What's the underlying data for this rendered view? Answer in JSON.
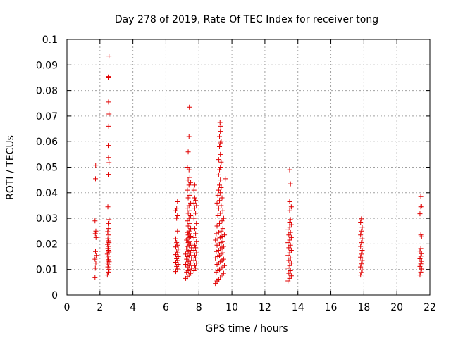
{
  "chart_data": {
    "type": "scatter",
    "title": "Day 278 of 2019, Rate Of TEC Index for receiver tong",
    "xlabel": "GPS time / hours",
    "ylabel": "ROTI / TECUs",
    "xlim": [
      0,
      22
    ],
    "ylim": [
      0,
      0.1
    ],
    "xticks": [
      0,
      2,
      4,
      6,
      8,
      10,
      12,
      14,
      16,
      18,
      20,
      22
    ],
    "yticks": [
      0,
      0.01,
      0.02,
      0.03,
      0.04,
      0.05,
      0.06,
      0.07,
      0.08,
      0.09,
      0.1
    ],
    "xtick_labels": [
      "0",
      "2",
      "4",
      "6",
      "8",
      "10",
      "12",
      "14",
      "16",
      "18",
      "20",
      "22"
    ],
    "ytick_labels": [
      "0",
      "0.01",
      "0.02",
      "0.03",
      "0.04",
      "0.05",
      "0.06",
      "0.07",
      "0.08",
      "0.09",
      "0.1"
    ],
    "grid": true,
    "marker": "+",
    "color": "#e00000",
    "series": [
      {
        "name": "ROTI",
        "points": [
          [
            1.7,
            0.0068
          ],
          [
            1.72,
            0.0105
          ],
          [
            1.75,
            0.0125
          ],
          [
            1.7,
            0.014
          ],
          [
            1.78,
            0.0155
          ],
          [
            1.73,
            0.017
          ],
          [
            1.76,
            0.0225
          ],
          [
            1.72,
            0.024
          ],
          [
            1.75,
            0.025
          ],
          [
            1.7,
            0.029
          ],
          [
            1.73,
            0.0455
          ],
          [
            1.74,
            0.0508
          ],
          [
            2.45,
            0.0078
          ],
          [
            2.5,
            0.009
          ],
          [
            2.55,
            0.01
          ],
          [
            2.48,
            0.011
          ],
          [
            2.52,
            0.0118
          ],
          [
            2.45,
            0.0125
          ],
          [
            2.56,
            0.013
          ],
          [
            2.5,
            0.0138
          ],
          [
            2.47,
            0.0145
          ],
          [
            2.53,
            0.0152
          ],
          [
            2.45,
            0.016
          ],
          [
            2.55,
            0.0168
          ],
          [
            2.5,
            0.0175
          ],
          [
            2.48,
            0.0182
          ],
          [
            2.52,
            0.019
          ],
          [
            2.46,
            0.0198
          ],
          [
            2.55,
            0.0205
          ],
          [
            2.5,
            0.0212
          ],
          [
            2.48,
            0.022
          ],
          [
            2.53,
            0.0235
          ],
          [
            2.47,
            0.0248
          ],
          [
            2.52,
            0.026
          ],
          [
            2.5,
            0.028
          ],
          [
            2.55,
            0.0295
          ],
          [
            2.48,
            0.0345
          ],
          [
            2.5,
            0.0472
          ],
          [
            2.55,
            0.0518
          ],
          [
            2.52,
            0.0538
          ],
          [
            2.5,
            0.0585
          ],
          [
            2.53,
            0.066
          ],
          [
            2.55,
            0.0708
          ],
          [
            2.52,
            0.0755
          ],
          [
            2.5,
            0.085
          ],
          [
            2.53,
            0.0855
          ],
          [
            2.55,
            0.0935
          ],
          [
            6.6,
            0.0092
          ],
          [
            6.7,
            0.0102
          ],
          [
            6.65,
            0.0112
          ],
          [
            6.75,
            0.012
          ],
          [
            6.6,
            0.0128
          ],
          [
            6.7,
            0.0135
          ],
          [
            6.65,
            0.0142
          ],
          [
            6.75,
            0.015
          ],
          [
            6.6,
            0.0158
          ],
          [
            6.7,
            0.0165
          ],
          [
            6.65,
            0.0172
          ],
          [
            6.75,
            0.018
          ],
          [
            6.6,
            0.0188
          ],
          [
            6.7,
            0.0195
          ],
          [
            6.65,
            0.0205
          ],
          [
            6.6,
            0.022
          ],
          [
            6.7,
            0.025
          ],
          [
            6.65,
            0.03
          ],
          [
            6.7,
            0.031
          ],
          [
            6.6,
            0.033
          ],
          [
            6.65,
            0.034
          ],
          [
            6.7,
            0.0365
          ],
          [
            7.2,
            0.0065
          ],
          [
            7.3,
            0.0072
          ],
          [
            7.4,
            0.0078
          ],
          [
            7.5,
            0.0085
          ],
          [
            7.25,
            0.009
          ],
          [
            7.35,
            0.0095
          ],
          [
            7.45,
            0.01
          ],
          [
            7.55,
            0.0105
          ],
          [
            7.3,
            0.011
          ],
          [
            7.4,
            0.0115
          ],
          [
            7.2,
            0.012
          ],
          [
            7.5,
            0.0125
          ],
          [
            7.35,
            0.013
          ],
          [
            7.45,
            0.0135
          ],
          [
            7.25,
            0.014
          ],
          [
            7.55,
            0.0145
          ],
          [
            7.3,
            0.015
          ],
          [
            7.4,
            0.0155
          ],
          [
            7.2,
            0.016
          ],
          [
            7.5,
            0.0165
          ],
          [
            7.35,
            0.017
          ],
          [
            7.45,
            0.0175
          ],
          [
            7.25,
            0.018
          ],
          [
            7.55,
            0.0185
          ],
          [
            7.3,
            0.019
          ],
          [
            7.4,
            0.0195
          ],
          [
            7.5,
            0.02
          ],
          [
            7.35,
            0.0205
          ],
          [
            7.45,
            0.021
          ],
          [
            7.25,
            0.0215
          ],
          [
            7.3,
            0.022
          ],
          [
            7.4,
            0.0225
          ],
          [
            7.5,
            0.023
          ],
          [
            7.35,
            0.0235
          ],
          [
            7.45,
            0.024
          ],
          [
            7.3,
            0.0245
          ],
          [
            7.4,
            0.025
          ],
          [
            7.5,
            0.026
          ],
          [
            7.35,
            0.027
          ],
          [
            7.45,
            0.028
          ],
          [
            7.3,
            0.029
          ],
          [
            7.4,
            0.03
          ],
          [
            7.5,
            0.031
          ],
          [
            7.35,
            0.032
          ],
          [
            7.45,
            0.033
          ],
          [
            7.3,
            0.034
          ],
          [
            7.4,
            0.035
          ],
          [
            7.5,
            0.036
          ],
          [
            7.35,
            0.038
          ],
          [
            7.45,
            0.039
          ],
          [
            7.3,
            0.041
          ],
          [
            7.4,
            0.043
          ],
          [
            7.5,
            0.044
          ],
          [
            7.35,
            0.045
          ],
          [
            7.45,
            0.046
          ],
          [
            7.4,
            0.049
          ],
          [
            7.3,
            0.05
          ],
          [
            7.35,
            0.056
          ],
          [
            7.4,
            0.062
          ],
          [
            7.42,
            0.0735
          ],
          [
            7.7,
            0.0095
          ],
          [
            7.8,
            0.0105
          ],
          [
            7.75,
            0.0115
          ],
          [
            7.85,
            0.0125
          ],
          [
            7.7,
            0.0135
          ],
          [
            7.8,
            0.0145
          ],
          [
            7.75,
            0.0155
          ],
          [
            7.85,
            0.0165
          ],
          [
            7.7,
            0.0175
          ],
          [
            7.8,
            0.0185
          ],
          [
            7.75,
            0.0195
          ],
          [
            7.85,
            0.021
          ],
          [
            7.7,
            0.0225
          ],
          [
            7.8,
            0.024
          ],
          [
            7.75,
            0.026
          ],
          [
            7.85,
            0.028
          ],
          [
            7.7,
            0.03
          ],
          [
            7.8,
            0.032
          ],
          [
            7.75,
            0.034
          ],
          [
            7.85,
            0.035
          ],
          [
            7.7,
            0.036
          ],
          [
            7.8,
            0.037
          ],
          [
            7.75,
            0.038
          ],
          [
            7.7,
            0.041
          ],
          [
            7.75,
            0.043
          ],
          [
            9.0,
            0.0045
          ],
          [
            9.1,
            0.0055
          ],
          [
            9.2,
            0.0062
          ],
          [
            9.3,
            0.007
          ],
          [
            9.4,
            0.0078
          ],
          [
            9.5,
            0.0085
          ],
          [
            9.05,
            0.009
          ],
          [
            9.15,
            0.0095
          ],
          [
            9.25,
            0.01
          ],
          [
            9.35,
            0.0105
          ],
          [
            9.45,
            0.011
          ],
          [
            9.55,
            0.0115
          ],
          [
            9.1,
            0.012
          ],
          [
            9.2,
            0.0125
          ],
          [
            9.3,
            0.013
          ],
          [
            9.4,
            0.0135
          ],
          [
            9.5,
            0.014
          ],
          [
            9.0,
            0.0145
          ],
          [
            9.15,
            0.015
          ],
          [
            9.25,
            0.0155
          ],
          [
            9.35,
            0.016
          ],
          [
            9.45,
            0.0165
          ],
          [
            9.05,
            0.017
          ],
          [
            9.2,
            0.0175
          ],
          [
            9.3,
            0.018
          ],
          [
            9.4,
            0.0185
          ],
          [
            9.5,
            0.019
          ],
          [
            9.1,
            0.0195
          ],
          [
            9.25,
            0.02
          ],
          [
            9.35,
            0.0205
          ],
          [
            9.45,
            0.021
          ],
          [
            9.0,
            0.0215
          ],
          [
            9.15,
            0.022
          ],
          [
            9.3,
            0.0225
          ],
          [
            9.4,
            0.023
          ],
          [
            9.55,
            0.0235
          ],
          [
            9.05,
            0.024
          ],
          [
            9.2,
            0.0245
          ],
          [
            9.35,
            0.025
          ],
          [
            9.45,
            0.026
          ],
          [
            9.1,
            0.027
          ],
          [
            9.25,
            0.028
          ],
          [
            9.4,
            0.029
          ],
          [
            9.5,
            0.03
          ],
          [
            9.15,
            0.031
          ],
          [
            9.3,
            0.032
          ],
          [
            9.45,
            0.033
          ],
          [
            9.2,
            0.034
          ],
          [
            9.35,
            0.035
          ],
          [
            9.1,
            0.036
          ],
          [
            9.25,
            0.037
          ],
          [
            9.4,
            0.038
          ],
          [
            9.15,
            0.039
          ],
          [
            9.3,
            0.04
          ],
          [
            9.2,
            0.041
          ],
          [
            9.35,
            0.042
          ],
          [
            9.25,
            0.043
          ],
          [
            9.3,
            0.045
          ],
          [
            9.2,
            0.047
          ],
          [
            9.25,
            0.049
          ],
          [
            9.3,
            0.05
          ],
          [
            9.35,
            0.052
          ],
          [
            9.2,
            0.053
          ],
          [
            9.3,
            0.055
          ],
          [
            9.25,
            0.058
          ],
          [
            9.35,
            0.06
          ],
          [
            9.3,
            0.0595
          ],
          [
            9.25,
            0.062
          ],
          [
            9.3,
            0.064
          ],
          [
            9.32,
            0.066
          ],
          [
            9.28,
            0.0675
          ],
          [
            9.6,
            0.0455
          ],
          [
            13.4,
            0.0055
          ],
          [
            13.5,
            0.0065
          ],
          [
            13.6,
            0.0075
          ],
          [
            13.45,
            0.0085
          ],
          [
            13.55,
            0.0095
          ],
          [
            13.4,
            0.0105
          ],
          [
            13.5,
            0.0115
          ],
          [
            13.6,
            0.0125
          ],
          [
            13.45,
            0.0135
          ],
          [
            13.55,
            0.0145
          ],
          [
            13.4,
            0.0155
          ],
          [
            13.5,
            0.0165
          ],
          [
            13.6,
            0.0175
          ],
          [
            13.45,
            0.0185
          ],
          [
            13.55,
            0.0195
          ],
          [
            13.4,
            0.0205
          ],
          [
            13.5,
            0.0215
          ],
          [
            13.6,
            0.0225
          ],
          [
            13.45,
            0.0235
          ],
          [
            13.55,
            0.0245
          ],
          [
            13.4,
            0.0255
          ],
          [
            13.5,
            0.0265
          ],
          [
            13.6,
            0.0275
          ],
          [
            13.5,
            0.0285
          ],
          [
            13.55,
            0.0295
          ],
          [
            13.5,
            0.033
          ],
          [
            13.6,
            0.0345
          ],
          [
            13.5,
            0.0365
          ],
          [
            13.55,
            0.0435
          ],
          [
            13.5,
            0.049
          ],
          [
            17.8,
            0.0078
          ],
          [
            17.85,
            0.0088
          ],
          [
            17.9,
            0.0098
          ],
          [
            17.8,
            0.011
          ],
          [
            17.85,
            0.0122
          ],
          [
            17.9,
            0.0135
          ],
          [
            17.8,
            0.0148
          ],
          [
            17.85,
            0.016
          ],
          [
            17.9,
            0.0175
          ],
          [
            17.8,
            0.019
          ],
          [
            17.85,
            0.0205
          ],
          [
            17.9,
            0.022
          ],
          [
            17.8,
            0.0235
          ],
          [
            17.85,
            0.025
          ],
          [
            17.9,
            0.0265
          ],
          [
            17.8,
            0.0285
          ],
          [
            17.85,
            0.0298
          ],
          [
            21.4,
            0.0078
          ],
          [
            21.45,
            0.009
          ],
          [
            21.5,
            0.0102
          ],
          [
            21.4,
            0.0112
          ],
          [
            21.45,
            0.0122
          ],
          [
            21.5,
            0.0132
          ],
          [
            21.4,
            0.0142
          ],
          [
            21.45,
            0.0152
          ],
          [
            21.5,
            0.0162
          ],
          [
            21.4,
            0.0172
          ],
          [
            21.45,
            0.0182
          ],
          [
            21.5,
            0.0228
          ],
          [
            21.45,
            0.0235
          ],
          [
            21.4,
            0.0318
          ],
          [
            21.45,
            0.0345
          ],
          [
            21.5,
            0.0348
          ],
          [
            21.45,
            0.0385
          ]
        ]
      }
    ]
  }
}
